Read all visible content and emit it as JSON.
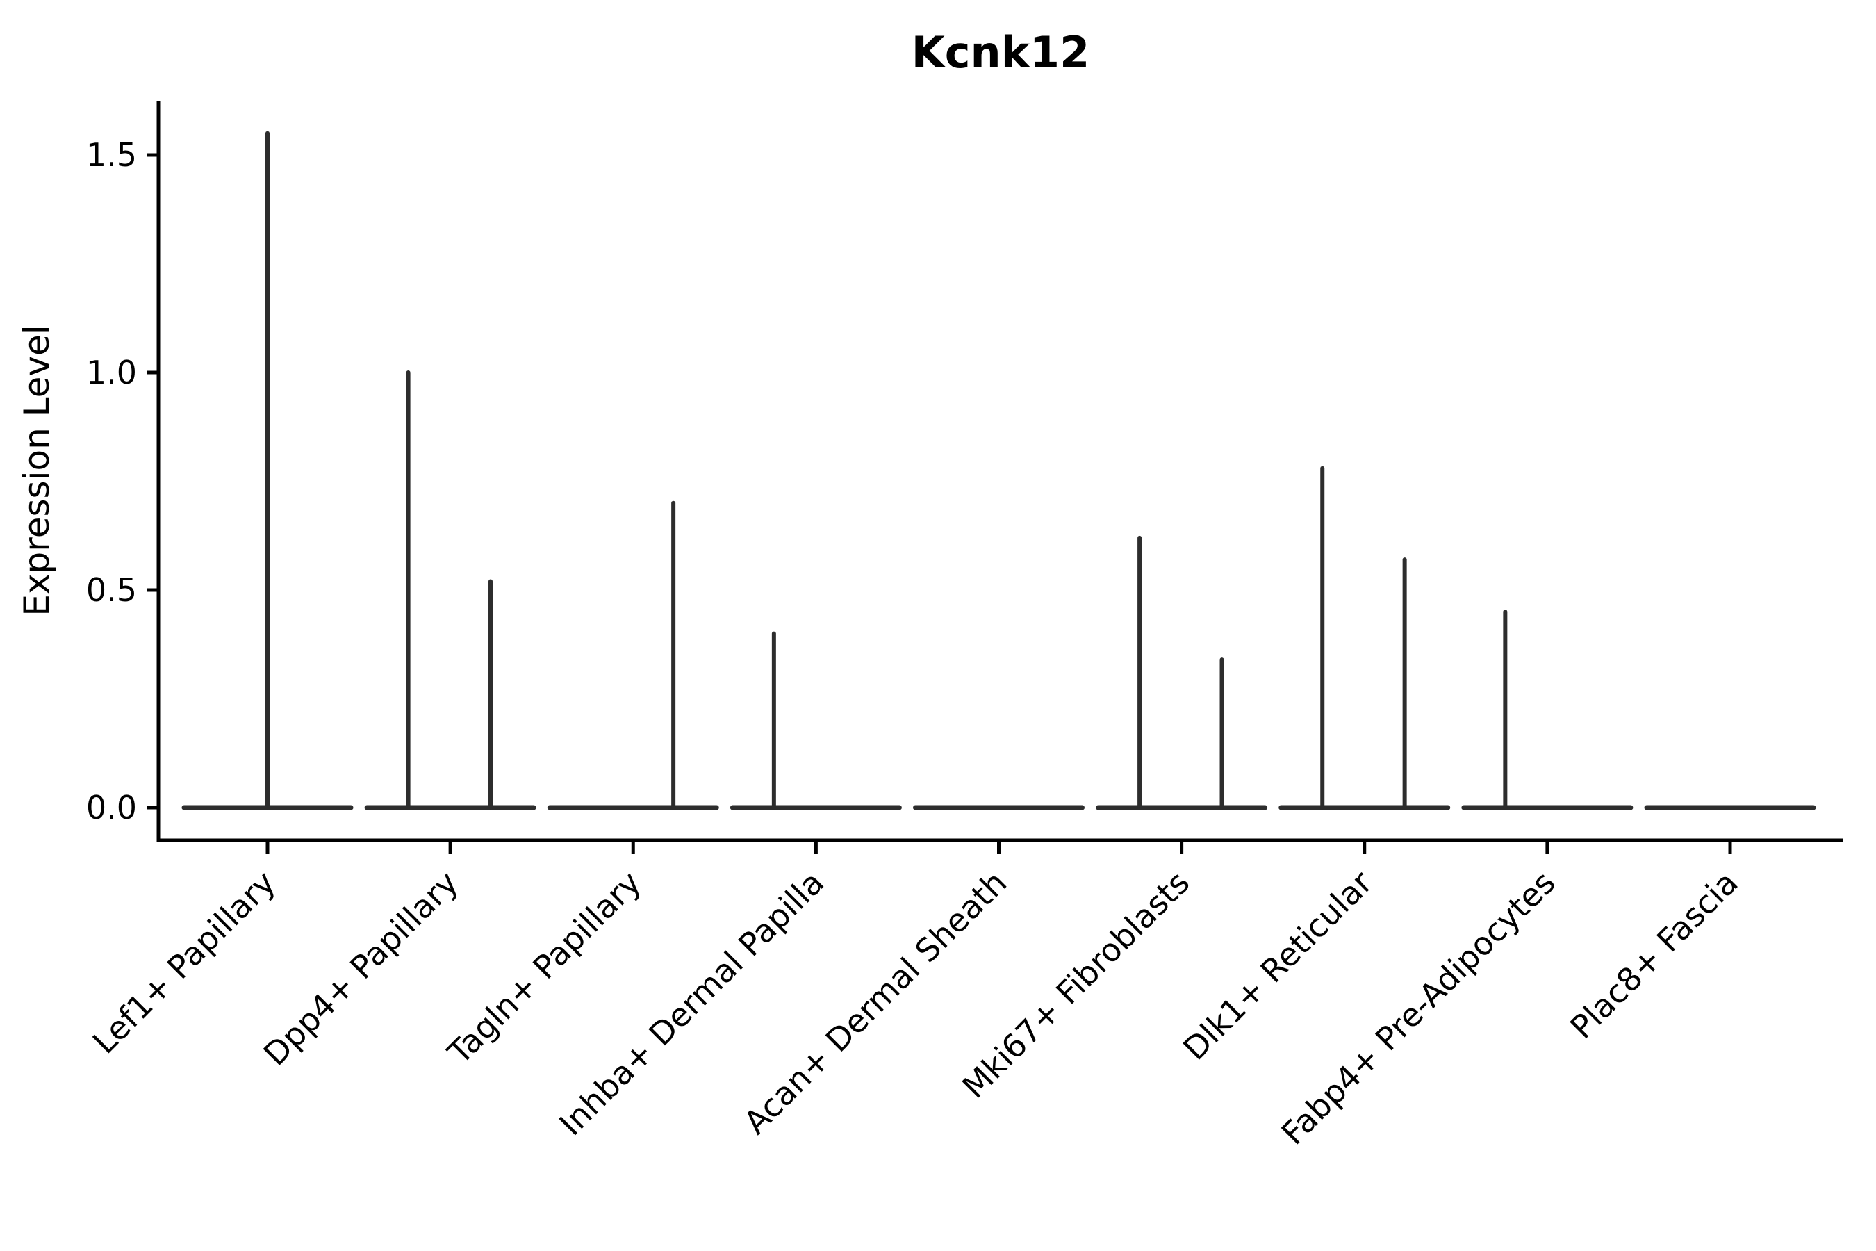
{
  "figure": {
    "background": "#ffffff"
  },
  "chart_data": {
    "type": "violin",
    "title": "Kcnk12",
    "ylabel": "Expression Level",
    "xlabel": "",
    "categories": [
      "Lef1+ Papillary",
      "Dpp4+ Papillary",
      "Tagln+ Papillary",
      "Inhba+ Dermal Papilla",
      "Acan+ Dermal Sheath",
      "Mki67+ Fibroblasts",
      "Dlk1+ Reticular",
      "Fabp4+ Pre-Adipocytes",
      "Plac8+ Fascia"
    ],
    "yticks": [
      0.0,
      0.5,
      1.0,
      1.5
    ],
    "ytick_labels": [
      "0.0",
      "0.5",
      "1.0",
      "1.5"
    ],
    "ylim": [
      -0.08,
      1.63
    ],
    "grid": false,
    "legend": null,
    "x_tick_rotation_deg": 45,
    "colors": {
      "violin_stroke": "#2d2d2d",
      "axis": "#000000",
      "text": "#000000"
    },
    "violins": [
      {
        "category_index": 0,
        "body_at_zero": true,
        "spikes": [
          {
            "pos": 0.0,
            "max": 1.55
          }
        ]
      },
      {
        "category_index": 1,
        "body_at_zero": true,
        "spikes": [
          {
            "pos": -0.23,
            "max": 1.0
          },
          {
            "pos": 0.22,
            "max": 0.52
          }
        ]
      },
      {
        "category_index": 2,
        "body_at_zero": true,
        "spikes": [
          {
            "pos": 0.22,
            "max": 0.7
          }
        ]
      },
      {
        "category_index": 3,
        "body_at_zero": true,
        "spikes": [
          {
            "pos": -0.23,
            "max": 0.4
          }
        ]
      },
      {
        "category_index": 4,
        "body_at_zero": true,
        "spikes": []
      },
      {
        "category_index": 5,
        "body_at_zero": true,
        "spikes": [
          {
            "pos": -0.23,
            "max": 0.62
          },
          {
            "pos": 0.22,
            "max": 0.34
          }
        ]
      },
      {
        "category_index": 6,
        "body_at_zero": true,
        "spikes": [
          {
            "pos": -0.23,
            "max": 0.78
          },
          {
            "pos": 0.22,
            "max": 0.57
          }
        ]
      },
      {
        "category_index": 7,
        "body_at_zero": true,
        "spikes": [
          {
            "pos": -0.23,
            "max": 0.45
          }
        ]
      },
      {
        "category_index": 8,
        "body_at_zero": true,
        "spikes": []
      }
    ]
  }
}
